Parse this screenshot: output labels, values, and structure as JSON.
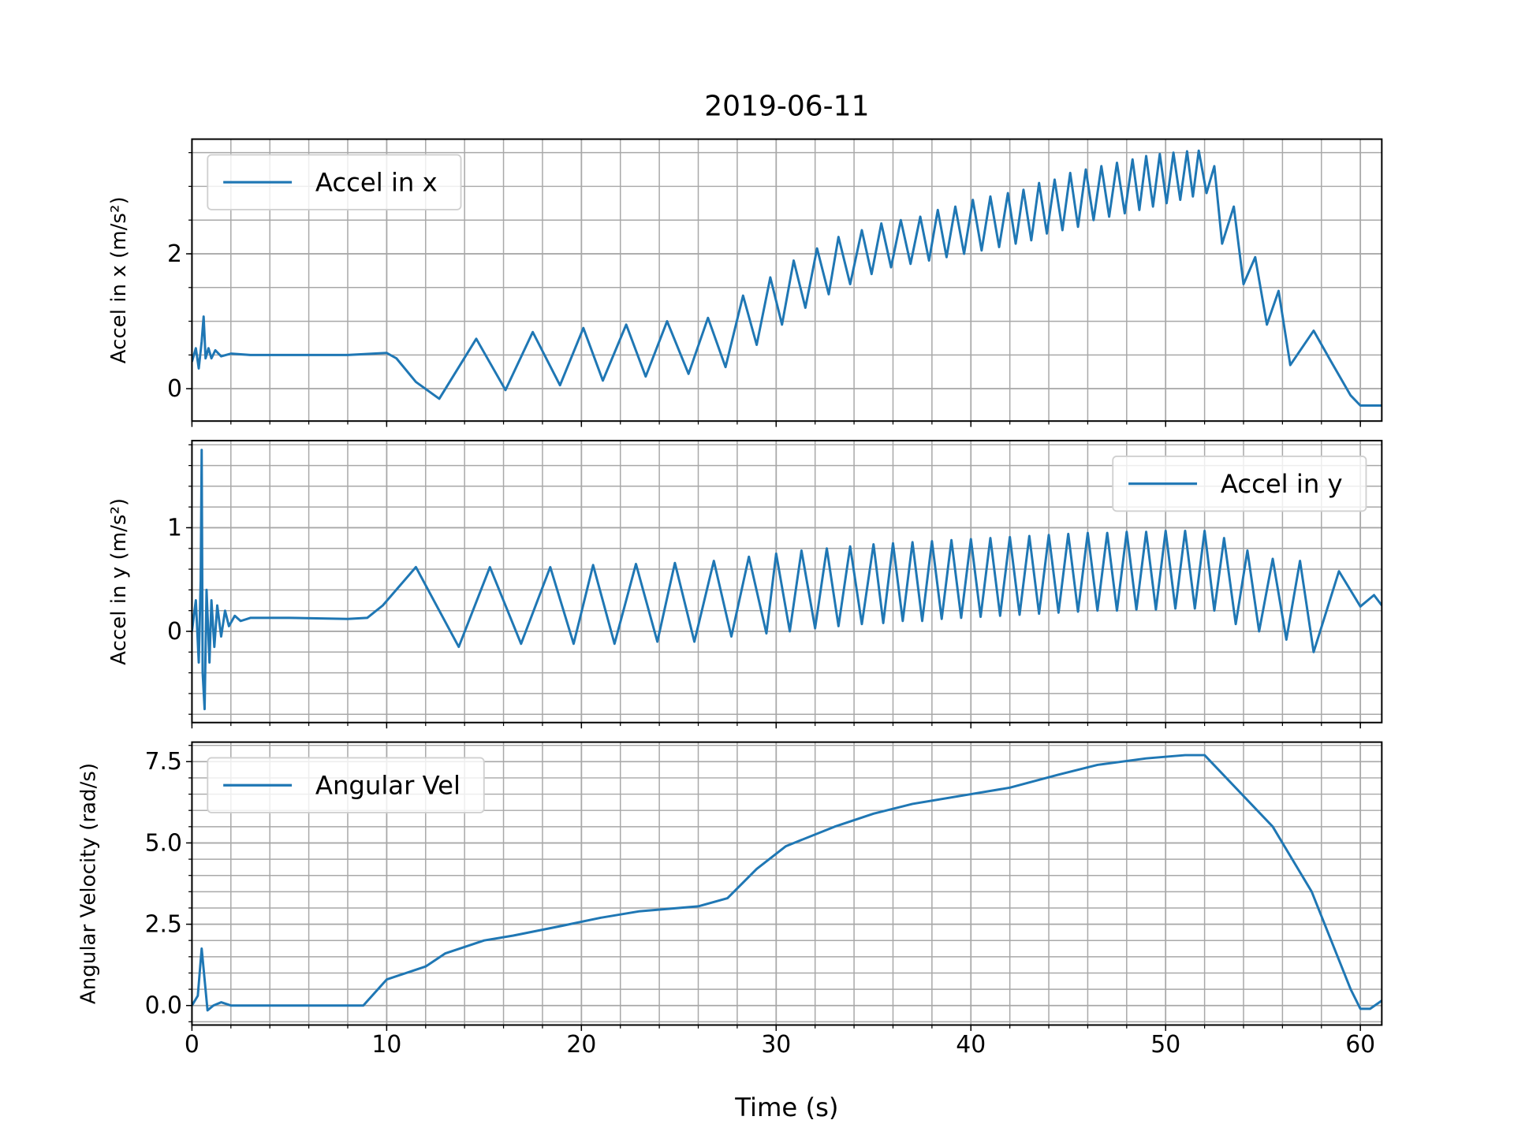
{
  "chart_data": [
    {
      "type": "line",
      "title": "2019-06-11",
      "ylabel": "Accel in x (m/s²)",
      "xlim": [
        0,
        61.1
      ],
      "xticks": [
        0,
        10,
        20,
        30,
        40,
        50,
        60
      ],
      "xminor_step": 2,
      "ylim": [
        -0.48,
        3.7
      ],
      "yticks": [
        0,
        2
      ],
      "yminor_step": 0.5,
      "grid": true,
      "minor_grid": true,
      "legend": "upper left",
      "x": [
        0,
        0.2,
        0.35,
        0.5,
        0.6,
        0.7,
        0.85,
        1.0,
        1.2,
        1.5,
        2,
        3,
        5,
        8,
        10,
        10.5,
        11.5,
        12.7,
        14.6,
        16.1,
        17.5,
        18.9,
        20.1,
        21.1,
        22.3,
        23.3,
        24.4,
        25.5,
        26.5,
        27.4,
        28.3,
        29.0,
        29.7,
        30.3,
        30.9,
        31.5,
        32.1,
        32.7,
        33.2,
        33.8,
        34.4,
        34.9,
        35.4,
        35.9,
        36.4,
        36.9,
        37.4,
        37.85,
        38.3,
        38.75,
        39.2,
        39.65,
        40.1,
        40.55,
        41.0,
        41.45,
        41.9,
        42.3,
        42.7,
        43.1,
        43.5,
        43.9,
        44.3,
        44.7,
        45.1,
        45.5,
        45.9,
        46.3,
        46.7,
        47.1,
        47.5,
        47.9,
        48.3,
        48.65,
        49.0,
        49.35,
        49.7,
        50.05,
        50.4,
        50.75,
        51.1,
        51.4,
        51.7,
        52.1,
        52.5,
        52.9,
        53.5,
        54.0,
        54.6,
        55.2,
        55.8,
        56.4,
        57.6,
        58.5,
        59.5,
        60.0,
        61.1
      ],
      "series": [
        {
          "name": "Accel in x",
          "color": "#1f77b4",
          "values": [
            0.4,
            0.6,
            0.3,
            0.7,
            1.07,
            0.45,
            0.6,
            0.45,
            0.57,
            0.48,
            0.52,
            0.5,
            0.5,
            0.5,
            0.53,
            0.45,
            0.1,
            -0.15,
            0.74,
            -0.02,
            0.84,
            0.05,
            0.9,
            0.12,
            0.95,
            0.18,
            1.0,
            0.22,
            1.05,
            0.32,
            1.38,
            0.65,
            1.65,
            0.95,
            1.9,
            1.2,
            2.08,
            1.4,
            2.25,
            1.55,
            2.35,
            1.7,
            2.45,
            1.8,
            2.5,
            1.85,
            2.55,
            1.9,
            2.65,
            1.95,
            2.7,
            2.0,
            2.8,
            2.05,
            2.85,
            2.1,
            2.9,
            2.15,
            2.95,
            2.2,
            3.05,
            2.3,
            3.1,
            2.35,
            3.2,
            2.4,
            3.25,
            2.5,
            3.3,
            2.55,
            3.35,
            2.6,
            3.4,
            2.65,
            3.45,
            2.7,
            3.48,
            2.75,
            3.5,
            2.8,
            3.52,
            2.85,
            3.53,
            2.9,
            3.3,
            2.15,
            2.7,
            1.55,
            1.95,
            0.95,
            1.45,
            0.35,
            0.86,
            0.4,
            -0.1,
            -0.25,
            -0.25
          ]
        }
      ]
    },
    {
      "type": "line",
      "ylabel": "Accel in y (m/s²)",
      "xlim": [
        0,
        61.1
      ],
      "xticks": [
        0,
        10,
        20,
        30,
        40,
        50,
        60
      ],
      "xminor_step": 2,
      "ylim": [
        -0.88,
        1.84
      ],
      "yticks": [
        0,
        1
      ],
      "yminor_step": 0.2,
      "grid": true,
      "minor_grid": true,
      "legend": "upper right",
      "x": [
        0,
        0.2,
        0.35,
        0.45,
        0.5,
        0.55,
        0.65,
        0.75,
        0.9,
        1.0,
        1.15,
        1.3,
        1.5,
        1.7,
        1.9,
        2.2,
        2.5,
        3,
        5,
        8,
        9,
        9.8,
        11.5,
        13.7,
        15.3,
        16.9,
        18.4,
        19.6,
        20.6,
        21.7,
        22.8,
        23.9,
        24.8,
        25.8,
        26.8,
        27.7,
        28.6,
        29.5,
        30.0,
        30.7,
        31.3,
        32.0,
        32.6,
        33.2,
        33.8,
        34.4,
        35.0,
        35.5,
        36.0,
        36.5,
        37.0,
        37.5,
        38.0,
        38.5,
        39.0,
        39.5,
        40.0,
        40.5,
        41.0,
        41.5,
        42.0,
        42.5,
        43.0,
        43.5,
        44.0,
        44.5,
        45.0,
        45.5,
        46.0,
        46.5,
        47.0,
        47.5,
        48.0,
        48.5,
        49.0,
        49.5,
        50.0,
        50.5,
        51.0,
        51.5,
        52.0,
        52.5,
        53.0,
        53.6,
        54.2,
        54.8,
        55.5,
        56.2,
        56.9,
        57.6,
        58.9,
        60.0,
        60.7,
        61.1
      ],
      "series": [
        {
          "name": "Accel in y",
          "color": "#1f77b4",
          "values": [
            0,
            0.3,
            -0.3,
            0.5,
            1.75,
            -0.4,
            -0.75,
            0.4,
            -0.3,
            0.3,
            -0.15,
            0.25,
            -0.05,
            0.2,
            0.05,
            0.15,
            0.1,
            0.13,
            0.13,
            0.12,
            0.13,
            0.25,
            0.62,
            -0.15,
            0.62,
            -0.12,
            0.62,
            -0.12,
            0.64,
            -0.12,
            0.65,
            -0.1,
            0.66,
            -0.1,
            0.68,
            -0.05,
            0.72,
            -0.02,
            0.75,
            0.0,
            0.78,
            0.03,
            0.8,
            0.05,
            0.82,
            0.07,
            0.84,
            0.08,
            0.85,
            0.1,
            0.86,
            0.1,
            0.87,
            0.12,
            0.88,
            0.13,
            0.89,
            0.14,
            0.9,
            0.15,
            0.91,
            0.16,
            0.92,
            0.17,
            0.93,
            0.18,
            0.94,
            0.19,
            0.95,
            0.2,
            0.95,
            0.2,
            0.96,
            0.21,
            0.96,
            0.21,
            0.97,
            0.22,
            0.97,
            0.22,
            0.97,
            0.2,
            0.9,
            0.07,
            0.78,
            0.0,
            0.7,
            -0.08,
            0.68,
            -0.2,
            0.58,
            0.24,
            0.35,
            0.25
          ]
        }
      ]
    },
    {
      "type": "line",
      "ylabel": "Angular Velocity (rad/s)",
      "xlabel": "Time (s)",
      "xlim": [
        0,
        61.1
      ],
      "xticks": [
        0,
        10,
        20,
        30,
        40,
        50,
        60
      ],
      "xminor_step": 2,
      "ylim": [
        -0.6,
        8.1
      ],
      "yticks": [
        {
          "value": 0,
          "label": "0.0"
        },
        {
          "value": 2.5,
          "label": "2.5"
        },
        {
          "value": 5,
          "label": "5.0"
        },
        {
          "value": 7.5,
          "label": "7.5"
        }
      ],
      "yminor_step": 0.5,
      "grid": true,
      "minor_grid": true,
      "legend": "upper left",
      "x": [
        0,
        0.3,
        0.5,
        0.65,
        0.8,
        1.1,
        1.5,
        2,
        5,
        8.8,
        10,
        12,
        13,
        15,
        16.5,
        19,
        21,
        23,
        26,
        27.5,
        29,
        30.5,
        33,
        35,
        37,
        40,
        42,
        44.5,
        46.5,
        49,
        51,
        52,
        55.5,
        57.5,
        58.5,
        59.5,
        60,
        60.5,
        61.1
      ],
      "series": [
        {
          "name": "Angular Vel",
          "color": "#1f77b4",
          "values": [
            0,
            0.3,
            1.75,
            0.8,
            -0.15,
            0,
            0.1,
            0,
            0,
            0,
            0.8,
            1.2,
            1.6,
            2.0,
            2.15,
            2.45,
            2.7,
            2.9,
            3.05,
            3.3,
            4.2,
            4.9,
            5.5,
            5.9,
            6.2,
            6.5,
            6.7,
            7.1,
            7.4,
            7.6,
            7.7,
            7.7,
            5.5,
            3.5,
            2.0,
            0.5,
            -0.1,
            -0.1,
            0.15
          ]
        }
      ]
    }
  ]
}
